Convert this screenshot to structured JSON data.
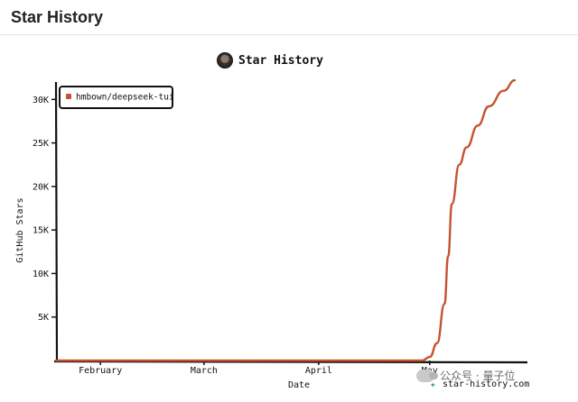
{
  "page": {
    "title": "Star History"
  },
  "chart_title": "Star History",
  "site_mark": "star-history.com",
  "watermark": "公众号 · 量子位",
  "colors": {
    "series": "#c5532f",
    "axis": "#111111"
  },
  "chart_data": {
    "type": "line",
    "title": "Star History",
    "xlabel": "Date",
    "ylabel": "GitHub Stars",
    "x_ticks": [
      "February",
      "March",
      "April",
      "May"
    ],
    "y_ticks": [
      "5K",
      "10K",
      "15K",
      "20K",
      "25K",
      "30K"
    ],
    "ylim": [
      0,
      32000
    ],
    "legend_position": "top-left",
    "series": [
      {
        "name": "hmbown/deepseek-tui",
        "color": "#c5532f",
        "points": [
          {
            "x": "2026-01-20",
            "y": 0
          },
          {
            "x": "2026-02-15",
            "y": 0
          },
          {
            "x": "2026-03-15",
            "y": 0
          },
          {
            "x": "2026-04-15",
            "y": 0
          },
          {
            "x": "2026-04-29",
            "y": 0
          },
          {
            "x": "2026-05-01",
            "y": 400
          },
          {
            "x": "2026-05-03",
            "y": 2000
          },
          {
            "x": "2026-05-05",
            "y": 6500
          },
          {
            "x": "2026-05-06",
            "y": 12000
          },
          {
            "x": "2026-05-07",
            "y": 18000
          },
          {
            "x": "2026-05-09",
            "y": 22500
          },
          {
            "x": "2026-05-11",
            "y": 24500
          },
          {
            "x": "2026-05-14",
            "y": 27000
          },
          {
            "x": "2026-05-17",
            "y": 29200
          },
          {
            "x": "2026-05-21",
            "y": 31000
          },
          {
            "x": "2026-05-24",
            "y": 32200
          }
        ]
      }
    ]
  }
}
